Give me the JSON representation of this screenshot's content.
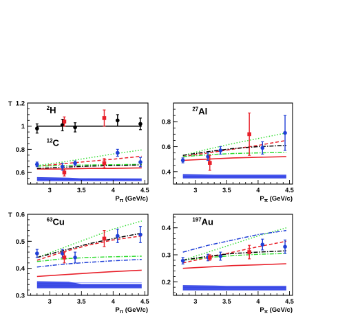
{
  "colors": {
    "data_black": "#000000",
    "data_red": "#e8202a",
    "data_blue": "#1f3fd6",
    "band_blue": "#2233dd",
    "curve_red_solid": "#e8202a",
    "curve_red_dashed": "#e8202a",
    "curve_green_dotted": "#33dd33",
    "curve_green_dashdot": "#33dd33",
    "curve_blue_dashdot": "#1f3fd6",
    "curve_black_dashdot": "#000000",
    "axes": "#000000"
  },
  "chart_data": [
    {
      "type": "scatter",
      "panel": "top-left",
      "ylabel": "T",
      "xlabel_main": "P",
      "xlabel_sub": "π",
      "xlabel_unit": " (GeV/c)",
      "xlim": [
        2.65,
        4.55
      ],
      "ylim": [
        0.5,
        1.2
      ],
      "xticks": [
        3,
        3.5,
        4,
        4.5
      ],
      "yticks": [
        0.6,
        0.8,
        1,
        1.2
      ],
      "annotations": [
        {
          "sup": "2",
          "text": "H",
          "x": 2.95,
          "y": 1.11
        },
        {
          "sup": "12",
          "text": "C",
          "x": 2.95,
          "y": 0.83
        }
      ],
      "series": [
        {
          "label_sup": "2",
          "label": "H",
          "marker": "circle",
          "color": "data_black",
          "x": [
            2.8,
            3.2,
            3.4,
            4.07,
            4.43
          ],
          "y": [
            0.98,
            1.01,
            0.99,
            1.05,
            1.02
          ],
          "err": [
            0.04,
            0.05,
            0.04,
            0.05,
            0.05
          ]
        },
        {
          "marker": "square",
          "color": "data_red",
          "x": [
            3.23,
            3.86
          ],
          "y": [
            1.04,
            1.07
          ],
          "err": [
            0.04,
            0.07
          ]
        },
        {
          "label_sup": "12",
          "label": "C",
          "marker": "circle",
          "color": "data_blue",
          "x": [
            2.8,
            3.2,
            3.4,
            4.07,
            4.43
          ],
          "y": [
            0.67,
            0.65,
            0.68,
            0.77,
            0.69
          ],
          "err": [
            0.02,
            0.03,
            0.02,
            0.03,
            0.04
          ]
        },
        {
          "marker": "square",
          "color": "data_red",
          "x": [
            3.23,
            3.86
          ],
          "y": [
            0.6,
            0.68
          ],
          "err": [
            0.03,
            0.04
          ]
        }
      ],
      "curves": [
        {
          "style": "solid",
          "color": "curve_black_dashdot",
          "x": [
            2.8,
            4.45
          ],
          "y": [
            1.0,
            1.0
          ]
        },
        {
          "style": "solid",
          "color": "curve_red_solid",
          "x": [
            2.8,
            3.2,
            3.6,
            4.0,
            4.45
          ],
          "y": [
            0.63,
            0.63,
            0.635,
            0.635,
            0.64
          ]
        },
        {
          "style": "dashed",
          "color": "curve_red_dashed",
          "x": [
            2.8,
            3.2,
            3.6,
            4.0,
            4.45
          ],
          "y": [
            0.655,
            0.675,
            0.695,
            0.715,
            0.74
          ]
        },
        {
          "style": "dotted",
          "color": "curve_green_dotted",
          "x": [
            2.8,
            3.2,
            3.6,
            4.0,
            4.45
          ],
          "y": [
            0.66,
            0.69,
            0.725,
            0.76,
            0.795
          ]
        },
        {
          "style": "dashdot",
          "color": "curve_green_dashdot",
          "x": [
            2.8,
            3.2,
            3.6,
            4.0,
            4.45
          ],
          "y": [
            0.655,
            0.66,
            0.665,
            0.667,
            0.67
          ]
        },
        {
          "style": "dashdot",
          "color": "curve_black_dashdot",
          "x": [
            2.8,
            3.2,
            3.6,
            4.0,
            4.45
          ],
          "y": [
            0.635,
            0.645,
            0.655,
            0.66,
            0.665
          ]
        }
      ],
      "band": {
        "x": [
          2.8,
          3.3,
          3.5,
          4.45
        ],
        "ytop": [
          0.56,
          0.555,
          0.55,
          0.545
        ],
        "ybottom": [
          0.525,
          0.525,
          0.525,
          0.525
        ]
      }
    },
    {
      "type": "scatter",
      "panel": "top-right",
      "xlabel_main": "P",
      "xlabel_sub": "π",
      "xlabel_unit": " (GeV/c)",
      "xlim": [
        2.65,
        4.55
      ],
      "ylim": [
        0.3,
        0.95
      ],
      "xticks": [
        3,
        3.5,
        4,
        4.5
      ],
      "yticks": [
        0.4,
        0.6,
        0.8
      ],
      "annotations": [
        {
          "sup": "27",
          "text": "Al",
          "x": 2.95,
          "y": 0.86
        }
      ],
      "series": [
        {
          "label_sup": "27",
          "label": "Al",
          "marker": "circle",
          "color": "data_blue",
          "x": [
            2.8,
            3.2,
            3.4,
            4.07,
            4.43
          ],
          "y": [
            0.49,
            0.52,
            0.57,
            0.59,
            0.71
          ],
          "err": [
            0.02,
            0.03,
            0.03,
            0.05,
            0.14
          ]
        },
        {
          "marker": "square",
          "color": "data_red",
          "x": [
            3.23,
            3.86
          ],
          "y": [
            0.47,
            0.7
          ],
          "err": [
            0.06,
            0.17
          ]
        }
      ],
      "curves": [
        {
          "style": "solid",
          "color": "curve_red_solid",
          "x": [
            2.8,
            3.2,
            3.6,
            4.0,
            4.45
          ],
          "y": [
            0.49,
            0.5,
            0.51,
            0.515,
            0.52
          ]
        },
        {
          "style": "dashed",
          "color": "curve_red_dashed",
          "x": [
            2.8,
            3.2,
            3.6,
            4.0,
            4.45
          ],
          "y": [
            0.52,
            0.55,
            0.58,
            0.61,
            0.65
          ]
        },
        {
          "style": "dotted",
          "color": "curve_green_dotted",
          "x": [
            2.8,
            3.2,
            3.6,
            4.0,
            4.45
          ],
          "y": [
            0.53,
            0.58,
            0.625,
            0.665,
            0.71
          ]
        },
        {
          "style": "dashdot",
          "color": "curve_green_dashdot",
          "x": [
            2.8,
            3.2,
            3.6,
            4.0,
            4.45
          ],
          "y": [
            0.52,
            0.535,
            0.545,
            0.55,
            0.555
          ]
        },
        {
          "style": "dashdot",
          "color": "curve_black_dashdot",
          "x": [
            2.8,
            3.2,
            3.6,
            4.0,
            4.45
          ],
          "y": [
            0.53,
            0.56,
            0.585,
            0.6,
            0.61
          ]
        }
      ],
      "band": {
        "x": [
          2.8,
          3.3,
          3.5,
          4.45
        ],
        "ytop": [
          0.38,
          0.375,
          0.375,
          0.375
        ],
        "ybottom": [
          0.345,
          0.345,
          0.345,
          0.345
        ]
      }
    },
    {
      "type": "scatter",
      "panel": "bottom-left",
      "ylabel": "T",
      "xlabel_main": "P",
      "xlabel_sub": "π",
      "xlabel_unit": " (GeV/c)",
      "xlim": [
        2.65,
        4.55
      ],
      "ylim": [
        0.3,
        0.6
      ],
      "xticks": [
        3,
        3.5,
        4,
        4.5
      ],
      "yticks": [
        0.3,
        0.4,
        0.5,
        0.6
      ],
      "annotations": [
        {
          "sup": "63",
          "text": "Cu",
          "x": 2.95,
          "y": 0.56
        }
      ],
      "series": [
        {
          "label_sup": "63",
          "label": "Cu",
          "marker": "circle",
          "color": "data_blue",
          "x": [
            2.8,
            3.2,
            3.4,
            4.07,
            4.43
          ],
          "y": [
            0.455,
            0.455,
            0.44,
            0.52,
            0.525
          ],
          "err": [
            0.015,
            0.015,
            0.02,
            0.025,
            0.03
          ]
        },
        {
          "marker": "square",
          "color": "data_red",
          "x": [
            3.23,
            3.86
          ],
          "y": [
            0.44,
            0.51
          ],
          "err": [
            0.02,
            0.03
          ]
        }
      ],
      "curves": [
        {
          "style": "solid",
          "color": "curve_red_solid",
          "x": [
            2.8,
            3.2,
            3.6,
            4.0,
            4.45
          ],
          "y": [
            0.37,
            0.376,
            0.382,
            0.388,
            0.393
          ]
        },
        {
          "style": "dashed",
          "color": "curve_red_dashed",
          "x": [
            2.8,
            3.2,
            3.6,
            4.0,
            4.45
          ],
          "y": [
            0.43,
            0.46,
            0.485,
            0.505,
            0.52
          ]
        },
        {
          "style": "dotted",
          "color": "curve_green_dotted",
          "x": [
            2.8,
            3.2,
            3.6,
            4.0,
            4.45
          ],
          "y": [
            0.44,
            0.475,
            0.51,
            0.545,
            0.575
          ]
        },
        {
          "style": "dashdot",
          "color": "curve_green_dashdot",
          "x": [
            2.8,
            3.2,
            3.6,
            4.0,
            4.45
          ],
          "y": [
            0.425,
            0.435,
            0.44,
            0.443,
            0.445
          ]
        },
        {
          "style": "dashdot",
          "color": "curve_blue_dashdot",
          "x": [
            2.8,
            3.2,
            3.6,
            4.0,
            4.45
          ],
          "y": [
            0.405,
            0.415,
            0.422,
            0.428,
            0.433
          ]
        },
        {
          "style": "dashdot",
          "color": "curve_black_dashdot",
          "x": [
            2.8,
            3.2,
            3.6,
            4.0,
            4.45
          ],
          "y": [
            0.44,
            0.465,
            0.49,
            0.51,
            0.53
          ]
        }
      ],
      "band": {
        "x": [
          2.8,
          3.3,
          3.5,
          4.45
        ],
        "ytop": [
          0.352,
          0.35,
          0.342,
          0.342
        ],
        "ybottom": [
          0.326,
          0.326,
          0.326,
          0.326
        ]
      }
    },
    {
      "type": "scatter",
      "panel": "bottom-right",
      "xlabel_main": "P",
      "xlabel_sub": "π",
      "xlabel_unit": " (GeV/c)",
      "xlim": [
        2.65,
        4.55
      ],
      "ylim": [
        0.15,
        0.45
      ],
      "xticks": [
        3,
        3.5,
        4,
        4.5
      ],
      "yticks": [
        0.2,
        0.3,
        0.4
      ],
      "annotations": [
        {
          "sup": "197",
          "text": "Au",
          "x": 2.95,
          "y": 0.41
        }
      ],
      "series": [
        {
          "label_sup": "197",
          "label": "Au",
          "marker": "circle",
          "color": "data_blue",
          "x": [
            2.8,
            3.2,
            3.4,
            4.07,
            4.43
          ],
          "y": [
            0.278,
            0.29,
            0.295,
            0.338,
            0.33
          ],
          "err": [
            0.012,
            0.012,
            0.015,
            0.02,
            0.025
          ]
        },
        {
          "marker": "square",
          "color": "data_red",
          "x": [
            3.23,
            3.86
          ],
          "y": [
            0.29,
            0.31
          ],
          "err": [
            0.01,
            0.025
          ]
        }
      ],
      "curves": [
        {
          "style": "solid",
          "color": "curve_red_solid",
          "x": [
            2.8,
            3.2,
            3.6,
            4.0,
            4.45
          ],
          "y": [
            0.25,
            0.255,
            0.26,
            0.263,
            0.267
          ]
        },
        {
          "style": "dashed",
          "color": "curve_red_dashed",
          "x": [
            2.8,
            3.2,
            3.6,
            4.0,
            4.45
          ],
          "y": [
            0.27,
            0.29,
            0.31,
            0.33,
            0.35
          ]
        },
        {
          "style": "dotted",
          "color": "curve_green_dotted",
          "x": [
            2.8,
            3.2,
            3.6,
            4.0,
            4.45
          ],
          "y": [
            0.28,
            0.31,
            0.34,
            0.37,
            0.4
          ]
        },
        {
          "style": "dashdot",
          "color": "curve_green_dashdot",
          "x": [
            2.8,
            3.2,
            3.6,
            4.0,
            4.45
          ],
          "y": [
            0.28,
            0.29,
            0.297,
            0.302,
            0.305
          ]
        },
        {
          "style": "dashdot",
          "color": "curve_blue_dashdot",
          "x": [
            2.8,
            3.2,
            3.6,
            4.0,
            4.45
          ],
          "y": [
            0.31,
            0.335,
            0.355,
            0.375,
            0.39
          ]
        },
        {
          "style": "dashdot",
          "color": "curve_black_dashdot",
          "x": [
            2.8,
            3.2,
            3.6,
            4.0,
            4.45
          ],
          "y": [
            0.28,
            0.295,
            0.305,
            0.31,
            0.315
          ]
        }
      ],
      "band": {
        "x": [
          2.8,
          3.3,
          3.5,
          4.45
        ],
        "ytop": [
          0.188,
          0.186,
          0.185,
          0.185
        ],
        "ybottom": [
          0.168,
          0.168,
          0.168,
          0.168
        ]
      }
    }
  ]
}
